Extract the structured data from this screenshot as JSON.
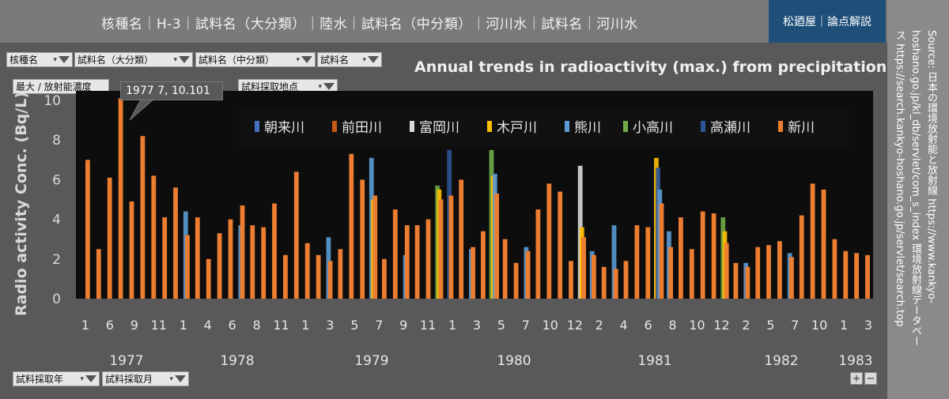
{
  "header": {
    "breadcrumb": "核種名｜H-3｜試料名（大分類）｜陸水｜試料名（中分類）｜河川水｜試料名｜河川水",
    "brand": "松廼屋｜論点解説"
  },
  "source_note": {
    "line1": "Source: 日本の環境放射能と放射線 https://www.kankyo-",
    "line2": "hoshano.go.jp/kl_db/servlet/com_s_index 環境放射線データベー",
    "line3": "ス https://search.kankyo-hoshano.go.jp/servlet/search.top"
  },
  "filters": {
    "row1": [
      "核種名",
      "試料名（大分類）",
      "試料名（中分類）",
      "試料名"
    ],
    "value_field": "最大 / 放射能濃度",
    "location": "試料採取地点",
    "year": "試料採取年",
    "month": "試料採取月"
  },
  "zoom": {
    "plus": "+",
    "minus": "−"
  },
  "tooltip": "1977 7, 10.101",
  "chart_data": {
    "type": "bar",
    "title": "Annual trends in radioactivity (max.) from precipitation",
    "ylabel": "Radio activity Conc. (Bq/L)",
    "xlabel": "",
    "ylim": [
      0,
      11
    ],
    "yticks": [
      0,
      2,
      4,
      6,
      8,
      10
    ],
    "grid": false,
    "legend_position": "top-right",
    "series": [
      {
        "name": "朝来川",
        "color": "#4472c4"
      },
      {
        "name": "前田川",
        "color": "#c55a11"
      },
      {
        "name": "富岡川",
        "color": "#d9d9d9"
      },
      {
        "name": "木戸川",
        "color": "#ffc000"
      },
      {
        "name": "熊川",
        "color": "#5b9bd5"
      },
      {
        "name": "小高川",
        "color": "#70ad47"
      },
      {
        "name": "高瀬川",
        "color": "#2f5597"
      },
      {
        "name": "新川",
        "color": "#ed7d31"
      }
    ],
    "month_tick_labels": [
      "1",
      "6",
      "9",
      "11",
      "1",
      "4",
      "6",
      "8",
      "11",
      "1",
      "3",
      "5",
      "7",
      "9",
      "11",
      "1",
      "3",
      "5",
      "7",
      "10",
      "12",
      "2",
      "4",
      "6",
      "8",
      "10",
      "12",
      "2",
      "5",
      "7",
      "10",
      "1",
      "3"
    ],
    "year_labels": [
      "1977",
      "1978",
      "1979",
      "1980",
      "1981",
      "1982",
      "1983"
    ],
    "categories": [
      "1977-01",
      "1977-04",
      "1977-06",
      "1977-07",
      "1977-08",
      "1977-09",
      "1977-10",
      "1977-11",
      "1977-12",
      "1978-01",
      "1978-02",
      "1978-03",
      "1978-04",
      "1978-05",
      "1978-06",
      "1978-07",
      "1978-08",
      "1978-09",
      "1978-10",
      "1978-11",
      "1978-12",
      "1979-01",
      "1979-02",
      "1979-03",
      "1979-04",
      "1979-05",
      "1979-06",
      "1979-07",
      "1979-08",
      "1979-09",
      "1979-10",
      "1979-11",
      "1979-12",
      "1980-01",
      "1980-02",
      "1980-03",
      "1980-04",
      "1980-05",
      "1980-06",
      "1980-07",
      "1980-08",
      "1980-09",
      "1980-10",
      "1980-11",
      "1980-12",
      "1981-01",
      "1981-02",
      "1981-03",
      "1981-04",
      "1981-05",
      "1981-06",
      "1981-07",
      "1981-08",
      "1981-09",
      "1981-10",
      "1981-11",
      "1981-12",
      "1982-01",
      "1982-02",
      "1982-03",
      "1982-04",
      "1982-05",
      "1982-06",
      "1982-07",
      "1982-08",
      "1982-09",
      "1982-10",
      "1982-11",
      "1982-12",
      "1983-01",
      "1983-02",
      "1983-03"
    ],
    "values": [
      [
        [
          "新川",
          7.0
        ]
      ],
      [
        [
          "新川",
          2.5
        ]
      ],
      [
        [
          "新川",
          6.1
        ]
      ],
      [
        [
          "新川",
          10.1
        ]
      ],
      [
        [
          "新川",
          4.9
        ]
      ],
      [
        [
          "新川",
          8.2
        ]
      ],
      [
        [
          "新川",
          6.2
        ]
      ],
      [
        [
          "新川",
          4.1
        ]
      ],
      [
        [
          "新川",
          5.6
        ]
      ],
      [
        [
          "熊川",
          4.4
        ],
        [
          "新川",
          3.2
        ]
      ],
      [
        [
          "新川",
          4.1
        ]
      ],
      [
        [
          "新川",
          2.0
        ]
      ],
      [
        [
          "新川",
          3.3
        ]
      ],
      [
        [
          "新川",
          4.0
        ]
      ],
      [
        [
          "熊川",
          3.7
        ],
        [
          "新川",
          4.7
        ]
      ],
      [
        [
          "新川",
          3.7
        ]
      ],
      [
        [
          "新川",
          3.6
        ]
      ],
      [
        [
          "新川",
          4.8
        ]
      ],
      [
        [
          "新川",
          2.2
        ]
      ],
      [
        [
          "新川",
          6.4
        ]
      ],
      [
        [
          "新川",
          2.8
        ]
      ],
      [
        [
          "新川",
          2.2
        ]
      ],
      [
        [
          "熊川",
          3.1
        ],
        [
          "新川",
          1.9
        ]
      ],
      [
        [
          "新川",
          2.5
        ]
      ],
      [
        [
          "新川",
          7.3
        ]
      ],
      [
        [
          "新川",
          6.0
        ]
      ],
      [
        [
          "熊川",
          7.1
        ],
        [
          "木戸川",
          5.0
        ],
        [
          "新川",
          5.2
        ]
      ],
      [
        [
          "新川",
          2.0
        ]
      ],
      [
        [
          "新川",
          4.5
        ]
      ],
      [
        [
          "熊川",
          2.2
        ],
        [
          "新川",
          3.7
        ]
      ],
      [
        [
          "新川",
          3.7
        ]
      ],
      [
        [
          "新川",
          4.0
        ]
      ],
      [
        [
          "小高川",
          5.7
        ],
        [
          "木戸川",
          5.5
        ],
        [
          "新川",
          5.0
        ]
      ],
      [
        [
          "高瀬川",
          7.5
        ],
        [
          "新川",
          5.2
        ]
      ],
      [
        [
          "新川",
          6.0
        ]
      ],
      [
        [
          "熊川",
          2.5
        ],
        [
          "新川",
          2.6
        ]
      ],
      [
        [
          "新川",
          3.4
        ]
      ],
      [
        [
          "小高川",
          7.5
        ],
        [
          "木戸川",
          6.2
        ],
        [
          "熊川",
          6.3
        ],
        [
          "新川",
          5.3
        ]
      ],
      [
        [
          "新川",
          3.0
        ]
      ],
      [
        [
          "新川",
          1.8
        ]
      ],
      [
        [
          "熊川",
          2.6
        ],
        [
          "新川",
          2.4
        ]
      ],
      [
        [
          "新川",
          4.5
        ]
      ],
      [
        [
          "新川",
          5.8
        ]
      ],
      [
        [
          "新川",
          5.4
        ]
      ],
      [
        [
          "新川",
          1.9
        ]
      ],
      [
        [
          "富岡川",
          6.7
        ],
        [
          "木戸川",
          3.6
        ],
        [
          "新川",
          3.1
        ]
      ],
      [
        [
          "熊川",
          2.4
        ],
        [
          "新川",
          2.2
        ]
      ],
      [
        [
          "新川",
          1.6
        ]
      ],
      [
        [
          "熊川",
          3.7
        ],
        [
          "新川",
          1.5
        ]
      ],
      [
        [
          "新川",
          1.9
        ]
      ],
      [
        [
          "新川",
          3.7
        ]
      ],
      [
        [
          "新川",
          3.6
        ]
      ],
      [
        [
          "木戸川",
          7.1
        ],
        [
          "高瀬川",
          6.6
        ],
        [
          "熊川",
          5.5
        ],
        [
          "新川",
          4.8
        ]
      ],
      [
        [
          "熊川",
          3.4
        ],
        [
          "新川",
          2.6
        ]
      ],
      [
        [
          "新川",
          4.1
        ]
      ],
      [
        [
          "新川",
          2.5
        ]
      ],
      [
        [
          "新川",
          4.4
        ]
      ],
      [
        [
          "新川",
          4.3
        ]
      ],
      [
        [
          "小高川",
          4.1
        ],
        [
          "木戸川",
          3.4
        ],
        [
          "新川",
          2.8
        ]
      ],
      [
        [
          "新川",
          1.8
        ]
      ],
      [
        [
          "熊川",
          1.8
        ],
        [
          "新川",
          1.6
        ]
      ],
      [
        [
          "新川",
          2.6
        ]
      ],
      [
        [
          "新川",
          2.7
        ]
      ],
      [
        [
          "新川",
          2.9
        ]
      ],
      [
        [
          "熊川",
          2.3
        ],
        [
          "新川",
          2.1
        ]
      ],
      [
        [
          "新川",
          4.2
        ]
      ],
      [
        [
          "新川",
          5.8
        ]
      ],
      [
        [
          "新川",
          5.5
        ]
      ],
      [
        [
          "新川",
          3.0
        ]
      ],
      [
        [
          "新川",
          2.4
        ]
      ],
      [
        [
          "新川",
          2.3
        ]
      ],
      [
        [
          "新川",
          2.2
        ]
      ]
    ]
  }
}
